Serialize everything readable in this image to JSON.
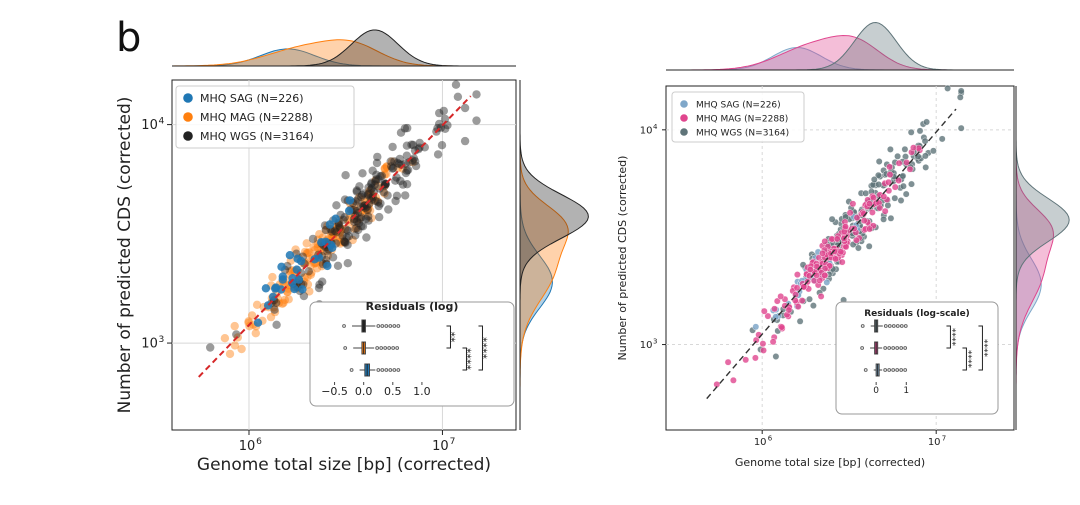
{
  "figure": {
    "panel_letter": "b",
    "caption": ""
  },
  "colors": {
    "left": {
      "SAG": "#1f77b4",
      "MAG": "#ff7f0e",
      "WGS": "#222222",
      "fit": "#d62728"
    },
    "right": {
      "SAG": "#7fa7c9",
      "MAG": "#e0468e",
      "WGS": "#5f7479",
      "fit": "#333333"
    }
  },
  "chart_data": [
    {
      "id": "left",
      "type": "scatter",
      "title": "",
      "xlabel": "Genome total size [bp] (corrected)",
      "ylabel": "Number of predicted CDS (corrected)",
      "xscale": "log",
      "yscale": "log",
      "xlim": [
        400000,
        24000000
      ],
      "ylim": [
        400,
        16000
      ],
      "xticks": [
        {
          "value": 1000000,
          "label": "10",
          "exp": "6"
        },
        {
          "value": 10000000,
          "label": "10",
          "exp": "7"
        }
      ],
      "yticks": [
        {
          "value": 1000,
          "label": "10",
          "exp": "3"
        },
        {
          "value": 10000,
          "label": "10",
          "exp": "4"
        }
      ],
      "grid": true,
      "legend_position": "top-left",
      "series": [
        {
          "name": "MHQ SAG (N=226)",
          "key": "SAG",
          "n": 226
        },
        {
          "name": "MHQ MAG (N=2288)",
          "key": "MAG",
          "n": 2288
        },
        {
          "name": "MHQ WGS (N=3164)",
          "key": "WGS",
          "n": 3164
        }
      ],
      "trend_line": {
        "x": [
          550000,
          14000000
        ],
        "y": [
          700,
          13500
        ],
        "style": "dashed"
      },
      "marginals": "kde per series (top: genome size, right: CDS count)",
      "inset": {
        "title": "Residuals (log)",
        "xlim": [
          -0.75,
          1.25
        ],
        "xticks": [
          {
            "value": -0.5,
            "label": "−0.5"
          },
          {
            "value": 0.0,
            "label": "0.0"
          },
          {
            "value": 0.5,
            "label": "0.5"
          },
          {
            "value": 1.0,
            "label": "1.0"
          }
        ],
        "boxes": [
          {
            "key": "WGS",
            "q1": -0.03,
            "median": 0.0,
            "q3": 0.03,
            "whisker_low": -0.2,
            "whisker_high": 0.2
          },
          {
            "key": "MAG",
            "q1": -0.03,
            "median": 0.0,
            "q3": 0.03,
            "whisker_low": -0.18,
            "whisker_high": 0.18
          },
          {
            "key": "SAG",
            "q1": 0.02,
            "median": 0.06,
            "q3": 0.1,
            "whisker_low": -0.07,
            "whisker_high": 0.2
          }
        ],
        "significance": [
          {
            "from": 0,
            "to": 1,
            "label": "**"
          },
          {
            "from": 1,
            "to": 2,
            "label": "****"
          },
          {
            "from": 0,
            "to": 2,
            "label": "****"
          }
        ]
      }
    },
    {
      "id": "right",
      "type": "scatter",
      "title": "",
      "xlabel": "Genome total size [bp] (corrected)",
      "ylabel": "Number of predicted CDS (corrected)",
      "xscale": "log",
      "yscale": "log",
      "xlim": [
        280000,
        28000000
      ],
      "ylim": [
        400,
        16000
      ],
      "xticks": [
        {
          "value": 1000000,
          "label": "10",
          "exp": "6"
        },
        {
          "value": 10000000,
          "label": "10",
          "exp": "7"
        }
      ],
      "yticks": [
        {
          "value": 1000,
          "label": "10",
          "exp": "3"
        },
        {
          "value": 10000,
          "label": "10",
          "exp": "4"
        }
      ],
      "grid": true,
      "legend_position": "top-left",
      "series": [
        {
          "name": "MHQ SAG (N=226)",
          "key": "SAG",
          "n": 226
        },
        {
          "name": "MHQ MAG (N=2288)",
          "key": "MAG",
          "n": 2288
        },
        {
          "name": "MHQ WGS (N=3164)",
          "key": "WGS",
          "n": 3164
        }
      ],
      "trend_line": {
        "x": [
          480000,
          13000000
        ],
        "y": [
          560,
          12500
        ],
        "style": "dashed"
      },
      "marginals": "kde per series (top: genome size, right: CDS count)",
      "inset": {
        "title": "Residuals (log-scale)",
        "xlim": [
          -1.0,
          2.0
        ],
        "xticks": [
          {
            "value": 0,
            "label": "0"
          },
          {
            "value": 1,
            "label": "1"
          }
        ],
        "boxes": [
          {
            "key": "WGS",
            "q1": -0.05,
            "median": 0.0,
            "q3": 0.05,
            "whisker_low": -0.18,
            "whisker_high": 0.22
          },
          {
            "key": "MAG",
            "q1": -0.05,
            "median": 0.0,
            "q3": 0.05,
            "whisker_low": -0.2,
            "whisker_high": 0.2
          },
          {
            "key": "SAG",
            "q1": 0.0,
            "median": 0.05,
            "q3": 0.1,
            "whisker_low": -0.08,
            "whisker_high": 0.2
          }
        ],
        "significance": [
          {
            "from": 0,
            "to": 1,
            "label": "****"
          },
          {
            "from": 1,
            "to": 2,
            "label": "****"
          },
          {
            "from": 0,
            "to": 2,
            "label": "****"
          }
        ]
      }
    }
  ]
}
